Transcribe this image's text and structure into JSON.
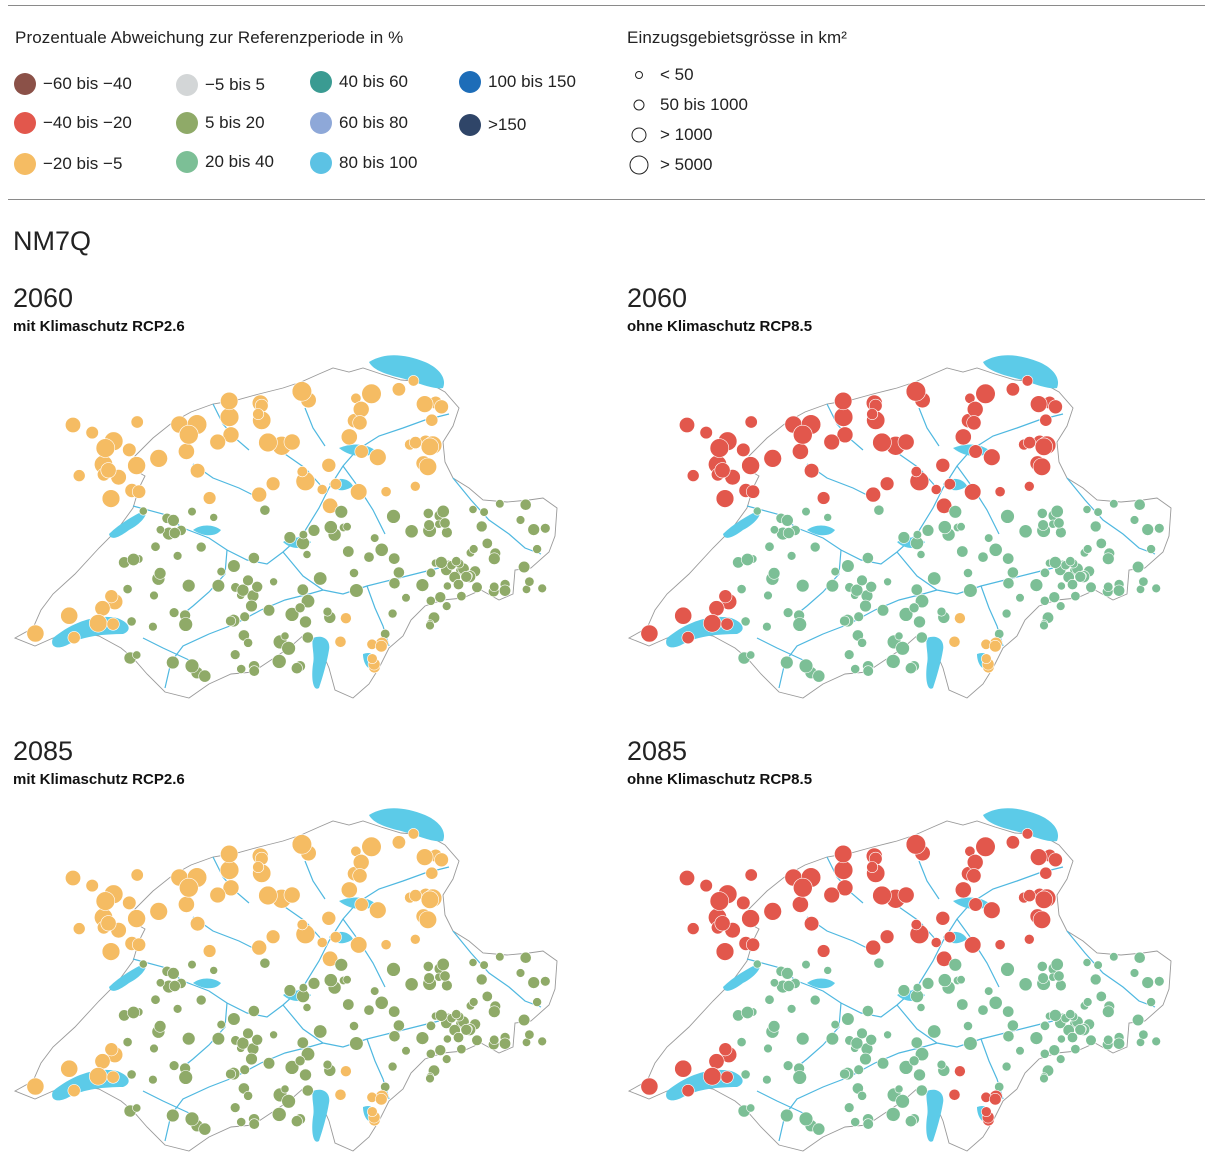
{
  "legend": {
    "title": "Prozentuale Abweichung zur Referenzperiode in %",
    "classes": [
      {
        "label": "−60 bis −40",
        "color": "#8b5148"
      },
      {
        "label": "−40 bis −20",
        "color": "#e2574c"
      },
      {
        "label": "−20 bis −5",
        "color": "#f5bc63"
      },
      {
        "label": "−5 bis 5",
        "color": "#d3d6d7"
      },
      {
        "label": "5 bis 20",
        "color": "#8faa68"
      },
      {
        "label": "20 bis 40",
        "color": "#7cbf96"
      },
      {
        "label": "40 bis 60",
        "color": "#3a9b92"
      },
      {
        "label": "60 bis 80",
        "color": "#8ea8d8"
      },
      {
        "label": "80 bis 100",
        "color": "#5cc2e4"
      },
      {
        "label": "100 bis 150",
        "color": "#1d6db8"
      },
      {
        ">150": null,
        "label": ">150",
        "color": "#2f4568"
      }
    ]
  },
  "size_legend": {
    "title": "Einzugsgebietsgrösse in km²",
    "items": [
      "< 50",
      "50 bis 1000",
      "> 1000",
      "> 5000"
    ]
  },
  "section_title": "NM7Q",
  "panels": [
    {
      "year": "2060",
      "scenario": "mit Klimaschutz RCP2.6",
      "scheme": "rcp26_2060"
    },
    {
      "year": "2060",
      "scenario": "ohne Klimaschutz RCP8.5",
      "scheme": "rcp85_2060"
    },
    {
      "year": "2085",
      "scenario": "mit Klimaschutz RCP2.6",
      "scheme": "rcp26_2085"
    },
    {
      "year": "2085",
      "scenario": "ohne Klimaschutz RCP8.5",
      "scheme": "rcp85_2085"
    }
  ],
  "colors": {
    "lake": "#5ccbe8",
    "river": "#4fb8e0",
    "border": "#9a9a9a",
    "rule": "#8a8a8a"
  }
}
